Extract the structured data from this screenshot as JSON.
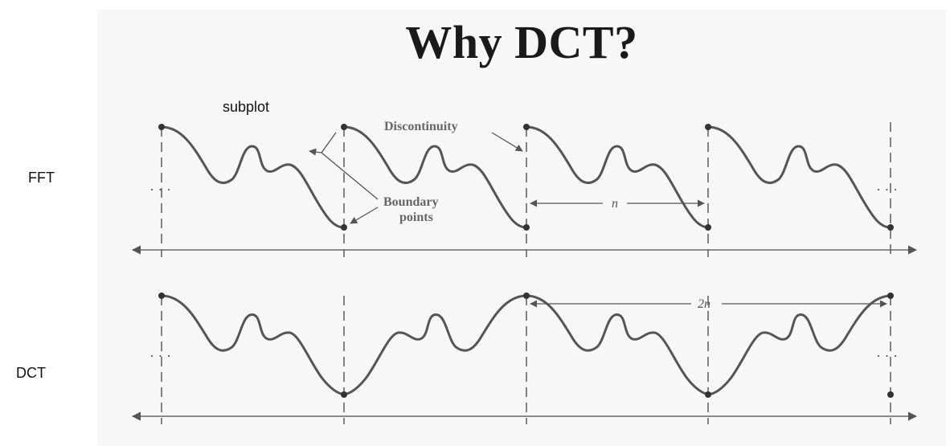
{
  "slide": {
    "title": "Why DCT?"
  },
  "labels": {
    "subplot": "subplot",
    "fft": "FFT",
    "dct": "DCT"
  },
  "annotations": {
    "discontinuity": "Discontinuity",
    "boundary_line1": "Boundary",
    "boundary_line2": "points",
    "n": "n",
    "two_n": "2n",
    "ellipsis": "· · ·"
  },
  "colors": {
    "curve": "#555555",
    "axis": "#666666",
    "text": "#222222"
  }
}
